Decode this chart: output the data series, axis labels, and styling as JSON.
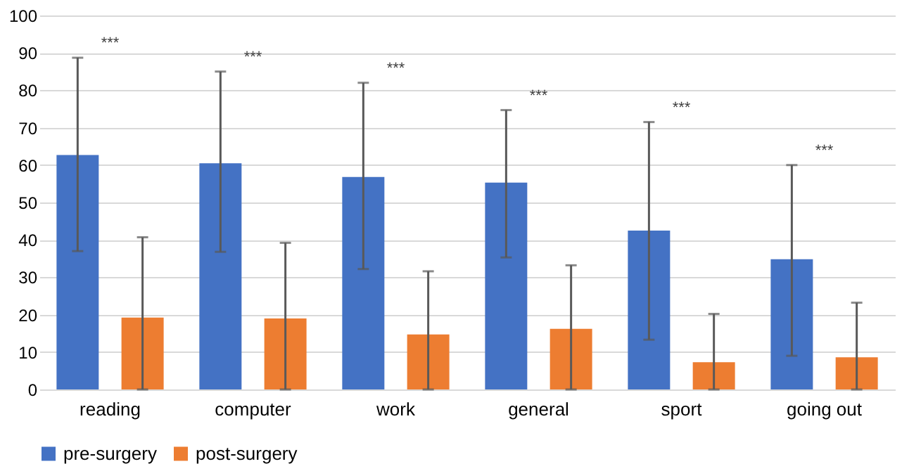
{
  "chart_data": {
    "type": "bar",
    "categories": [
      "reading",
      "computer",
      "work",
      "general",
      "sport",
      "going out"
    ],
    "series": [
      {
        "name": "pre-surgery",
        "color": "#4472c4",
        "values": [
          62.7,
          60.5,
          56.8,
          55.3,
          42.5,
          34.8
        ],
        "errors": [
          [
            37,
            88.7
          ],
          [
            36.8,
            85
          ],
          [
            32.2,
            82
          ],
          [
            35.3,
            74.7
          ],
          [
            13.3,
            71.5
          ],
          [
            9,
            60
          ]
        ]
      },
      {
        "name": "post-surgery",
        "color": "#ed7d31",
        "values": [
          19.2,
          19,
          14.7,
          16.2,
          7.3,
          8.6
        ],
        "errors": [
          [
            0,
            40.7
          ],
          [
            0,
            39.2
          ],
          [
            0,
            31.6
          ],
          [
            0,
            33.2
          ],
          [
            0,
            20.2
          ],
          [
            0,
            23.2
          ]
        ]
      }
    ],
    "annotations": [
      "***",
      "***",
      "***",
      "***",
      "***",
      "***"
    ],
    "ylim": [
      0,
      100
    ],
    "yticks": [
      0,
      10,
      20,
      30,
      40,
      50,
      60,
      70,
      80,
      90,
      100
    ],
    "grid": "y",
    "legend": "bottom"
  }
}
